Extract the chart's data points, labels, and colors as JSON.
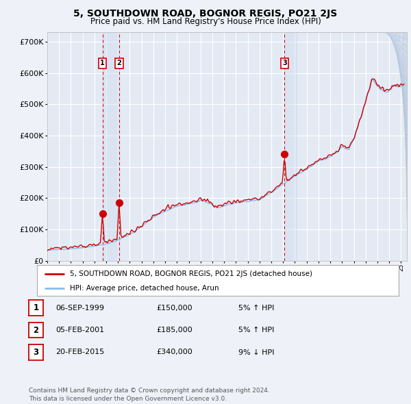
{
  "title": "5, SOUTHDOWN ROAD, BOGNOR REGIS, PO21 2JS",
  "subtitle": "Price paid vs. HM Land Registry's House Price Index (HPI)",
  "xlim_start": 1995.0,
  "xlim_end": 2025.5,
  "ylim": [
    0,
    730000
  ],
  "yticks": [
    0,
    100000,
    200000,
    300000,
    400000,
    500000,
    600000,
    700000
  ],
  "ytick_labels": [
    "£0",
    "£100K",
    "£200K",
    "£300K",
    "£400K",
    "£500K",
    "£600K",
    "£700K"
  ],
  "background_color": "#eef2f8",
  "plot_bg_color": "#e4eaf4",
  "grid_color": "#ffffff",
  "transaction_markers": [
    {
      "num": 1,
      "date_x": 1999.68,
      "price": 150000,
      "label": "1"
    },
    {
      "num": 2,
      "date_x": 2001.09,
      "price": 185000,
      "label": "2"
    },
    {
      "num": 3,
      "date_x": 2015.12,
      "price": 340000,
      "label": "3"
    }
  ],
  "vspan_1": [
    1999.68,
    2001.09
  ],
  "vspan_3_x": 2015.12,
  "vspan_color": "#c8d8ee",
  "red_line_color": "#cc0000",
  "blue_line_color": "#88bbe8",
  "legend_label_red": "5, SOUTHDOWN ROAD, BOGNOR REGIS, PO21 2JS (detached house)",
  "legend_label_blue": "HPI: Average price, detached house, Arun",
  "table_rows": [
    {
      "num": "1",
      "date": "06-SEP-1999",
      "price": "£150,000",
      "pct": "5% ↑ HPI"
    },
    {
      "num": "2",
      "date": "05-FEB-2001",
      "price": "£185,000",
      "pct": "5% ↑ HPI"
    },
    {
      "num": "3",
      "date": "20-FEB-2015",
      "price": "£340,000",
      "pct": "9% ↓ HPI"
    }
  ],
  "footnote": "Contains HM Land Registry data © Crown copyright and database right 2024.\nThis data is licensed under the Open Government Licence v3.0."
}
